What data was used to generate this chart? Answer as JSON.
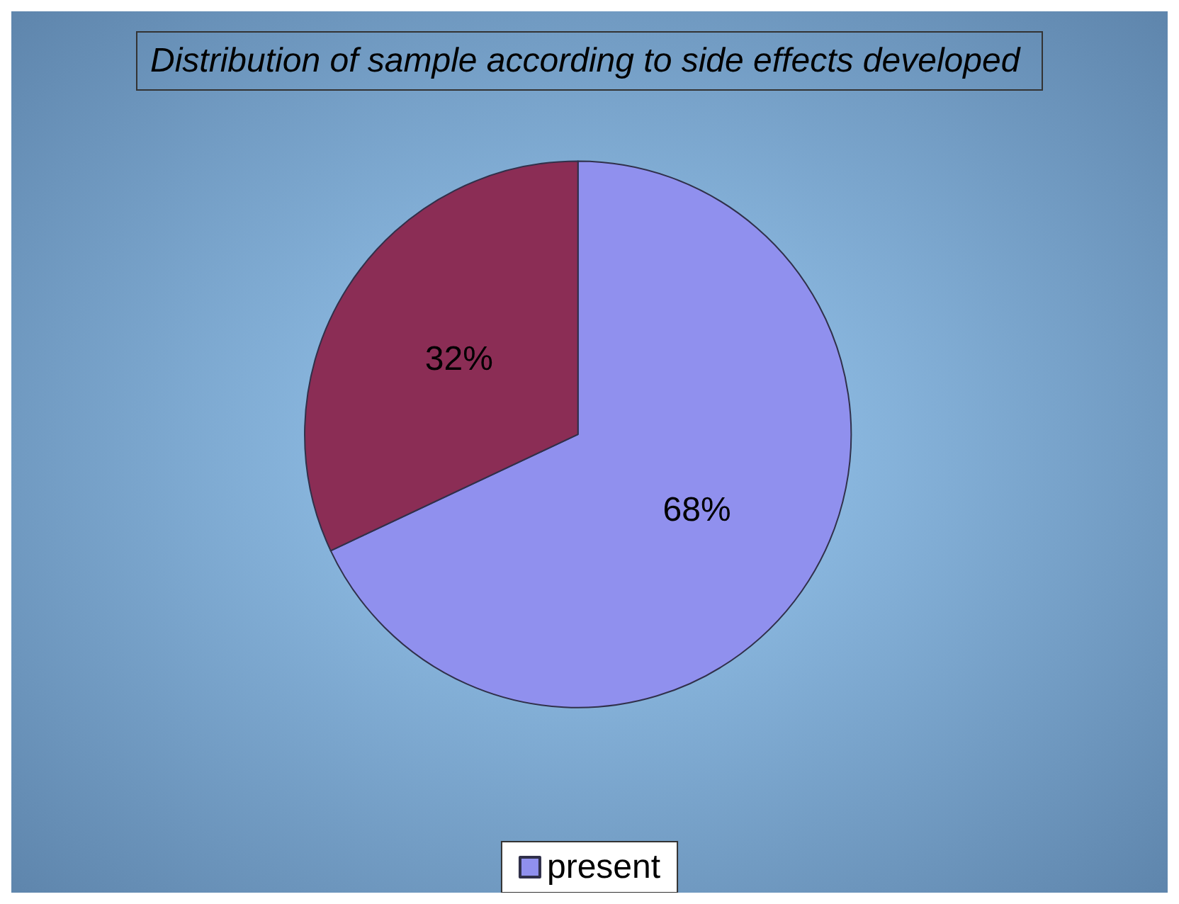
{
  "chart_data": {
    "type": "pie",
    "title": "Distribution of sample according to side effects developed",
    "categories": [
      "present",
      null
    ],
    "values": [
      68,
      32
    ],
    "colors": [
      "#9090ee",
      "#8b2d55"
    ],
    "value_labels": [
      "68%",
      "32%"
    ],
    "legend": "bottom"
  }
}
